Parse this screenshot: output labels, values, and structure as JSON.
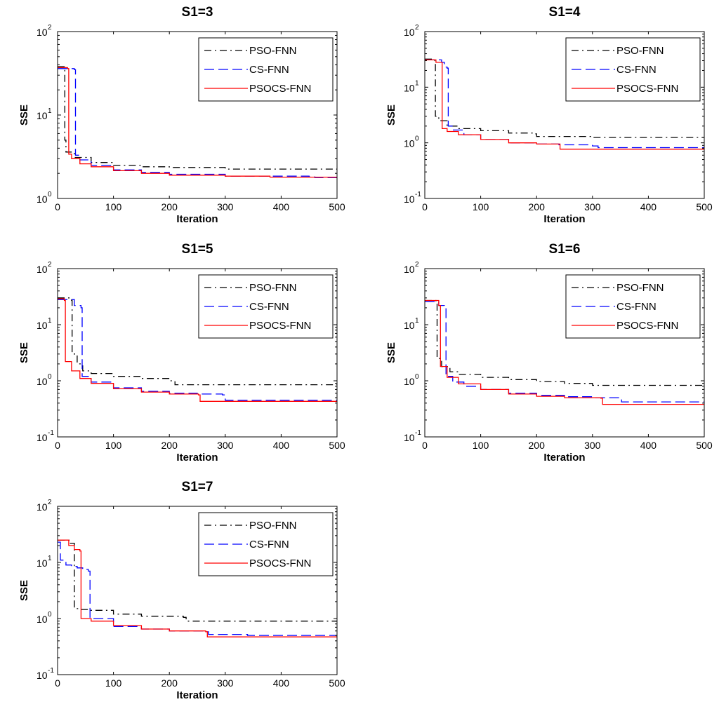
{
  "chart_data": [
    {
      "type": "line",
      "title": "S1=3",
      "xlabel": "Iteration",
      "ylabel": "SSE",
      "xlim": [
        0,
        500
      ],
      "ylim": [
        1,
        100
      ],
      "y_scale": "log",
      "xticks": [
        "0",
        "100",
        "200",
        "300",
        "400",
        "500"
      ],
      "yticks": [
        {
          "base": "10",
          "exp": "0"
        },
        {
          "base": "10",
          "exp": "1"
        },
        {
          "base": "10",
          "exp": "2"
        }
      ],
      "legend_position": "top-right",
      "grid": false,
      "series": [
        {
          "name": "PSO-FNN",
          "color": "#000000",
          "dash": "dashdot",
          "points": [
            [
              0,
              38
            ],
            [
              12,
              35
            ],
            [
              13,
              5
            ],
            [
              15,
              3.6
            ],
            [
              30,
              3.1
            ],
            [
              60,
              2.7
            ],
            [
              100,
              2.5
            ],
            [
              150,
              2.4
            ],
            [
              200,
              2.35
            ],
            [
              300,
              2.25
            ],
            [
              500,
              2.2
            ]
          ]
        },
        {
          "name": "CS-FNN",
          "color": "#0000ff",
          "dash": "dashed",
          "points": [
            [
              0,
              36
            ],
            [
              30,
              35
            ],
            [
              32,
              3.3
            ],
            [
              40,
              2.9
            ],
            [
              60,
              2.5
            ],
            [
              100,
              2.2
            ],
            [
              150,
              2.05
            ],
            [
              200,
              1.95
            ],
            [
              300,
              1.85
            ],
            [
              450,
              1.82
            ],
            [
              460,
              1.78
            ],
            [
              500,
              1.78
            ]
          ]
        },
        {
          "name": "PSOCS-FNN",
          "color": "#ff0000",
          "dash": "solid",
          "points": [
            [
              0,
              37
            ],
            [
              18,
              36
            ],
            [
              20,
              3.4
            ],
            [
              25,
              3.0
            ],
            [
              40,
              2.6
            ],
            [
              60,
              2.4
            ],
            [
              100,
              2.15
            ],
            [
              150,
              2.0
            ],
            [
              200,
              1.9
            ],
            [
              300,
              1.85
            ],
            [
              380,
              1.8
            ],
            [
              500,
              1.75
            ]
          ]
        }
      ]
    },
    {
      "type": "line",
      "title": "S1=4",
      "xlabel": "Iteration",
      "ylabel": "SSE",
      "xlim": [
        0,
        500
      ],
      "ylim": [
        0.1,
        100
      ],
      "y_scale": "log",
      "xticks": [
        "0",
        "100",
        "200",
        "300",
        "400",
        "500"
      ],
      "yticks": [
        {
          "base": "10",
          "exp": "-1"
        },
        {
          "base": "10",
          "exp": "0"
        },
        {
          "base": "10",
          "exp": "1"
        },
        {
          "base": "10",
          "exp": "2"
        }
      ],
      "legend_position": "top-right",
      "grid": false,
      "series": [
        {
          "name": "PSO-FNN",
          "color": "#000000",
          "dash": "dashdot",
          "points": [
            [
              0,
              32
            ],
            [
              18,
              30
            ],
            [
              19,
              3.0
            ],
            [
              25,
              2.5
            ],
            [
              40,
              2.0
            ],
            [
              60,
              1.8
            ],
            [
              100,
              1.65
            ],
            [
              150,
              1.5
            ],
            [
              195,
              1.45
            ],
            [
              200,
              1.3
            ],
            [
              300,
              1.25
            ],
            [
              500,
              1.25
            ]
          ]
        },
        {
          "name": "CS-FNN",
          "color": "#0000ff",
          "dash": "dashed",
          "points": [
            [
              0,
              31
            ],
            [
              30,
              28
            ],
            [
              35,
              23
            ],
            [
              40,
              22
            ],
            [
              42,
              2.0
            ],
            [
              50,
              1.7
            ],
            [
              70,
              1.4
            ],
            [
              100,
              1.15
            ],
            [
              150,
              1.0
            ],
            [
              200,
              0.95
            ],
            [
              240,
              0.92
            ],
            [
              300,
              0.88
            ],
            [
              310,
              0.82
            ],
            [
              500,
              0.8
            ]
          ]
        },
        {
          "name": "PSOCS-FNN",
          "color": "#ff0000",
          "dash": "solid",
          "points": [
            [
              0,
              31
            ],
            [
              20,
              28
            ],
            [
              30,
              28
            ],
            [
              31,
              1.8
            ],
            [
              40,
              1.6
            ],
            [
              60,
              1.4
            ],
            [
              100,
              1.15
            ],
            [
              150,
              1.0
            ],
            [
              200,
              0.95
            ],
            [
              240,
              0.95
            ],
            [
              242,
              0.77
            ],
            [
              500,
              0.77
            ]
          ]
        }
      ]
    },
    {
      "type": "line",
      "title": "S1=5",
      "xlabel": "Iteration",
      "ylabel": "SSE",
      "xlim": [
        0,
        500
      ],
      "ylim": [
        0.1,
        100
      ],
      "y_scale": "log",
      "xticks": [
        "0",
        "100",
        "200",
        "300",
        "400",
        "500"
      ],
      "yticks": [
        {
          "base": "10",
          "exp": "-1"
        },
        {
          "base": "10",
          "exp": "0"
        },
        {
          "base": "10",
          "exp": "1"
        },
        {
          "base": "10",
          "exp": "2"
        }
      ],
      "legend_position": "top-right",
      "grid": false,
      "series": [
        {
          "name": "PSO-FNN",
          "color": "#000000",
          "dash": "dashdot",
          "points": [
            [
              0,
              30
            ],
            [
              25,
              27
            ],
            [
              26,
              3.0
            ],
            [
              35,
              2.0
            ],
            [
              45,
              1.5
            ],
            [
              60,
              1.35
            ],
            [
              100,
              1.2
            ],
            [
              150,
              1.1
            ],
            [
              200,
              1.0
            ],
            [
              210,
              0.85
            ],
            [
              300,
              0.85
            ],
            [
              500,
              0.85
            ]
          ]
        },
        {
          "name": "CS-FNN",
          "color": "#0000ff",
          "dash": "dashed",
          "points": [
            [
              0,
              28
            ],
            [
              30,
              22
            ],
            [
              42,
              20
            ],
            [
              44,
              1.2
            ],
            [
              60,
              0.95
            ],
            [
              100,
              0.75
            ],
            [
              150,
              0.65
            ],
            [
              200,
              0.6
            ],
            [
              250,
              0.58
            ],
            [
              295,
              0.56
            ],
            [
              300,
              0.45
            ],
            [
              500,
              0.45
            ]
          ]
        },
        {
          "name": "PSOCS-FNN",
          "color": "#ff0000",
          "dash": "solid",
          "points": [
            [
              0,
              29
            ],
            [
              12,
              27
            ],
            [
              14,
              2.2
            ],
            [
              25,
              1.5
            ],
            [
              40,
              1.1
            ],
            [
              60,
              0.9
            ],
            [
              100,
              0.72
            ],
            [
              150,
              0.63
            ],
            [
              200,
              0.58
            ],
            [
              252,
              0.56
            ],
            [
              255,
              0.43
            ],
            [
              500,
              0.43
            ]
          ]
        }
      ]
    },
    {
      "type": "line",
      "title": "S1=6",
      "xlabel": "Iteration",
      "ylabel": "SSE",
      "xlim": [
        0,
        500
      ],
      "ylim": [
        0.1,
        100
      ],
      "y_scale": "log",
      "xticks": [
        "0",
        "100",
        "200",
        "300",
        "400",
        "500"
      ],
      "yticks": [
        {
          "base": "10",
          "exp": "-1"
        },
        {
          "base": "10",
          "exp": "0"
        },
        {
          "base": "10",
          "exp": "1"
        },
        {
          "base": "10",
          "exp": "2"
        }
      ],
      "legend_position": "top-right",
      "grid": false,
      "series": [
        {
          "name": "PSO-FNN",
          "color": "#000000",
          "dash": "dashdot",
          "points": [
            [
              0,
              27
            ],
            [
              20,
              24
            ],
            [
              22,
              2.5
            ],
            [
              30,
              1.8
            ],
            [
              45,
              1.45
            ],
            [
              60,
              1.3
            ],
            [
              100,
              1.15
            ],
            [
              150,
              1.05
            ],
            [
              200,
              0.97
            ],
            [
              250,
              0.9
            ],
            [
              300,
              0.83
            ],
            [
              500,
              0.8
            ]
          ]
        },
        {
          "name": "CS-FNN",
          "color": "#0000ff",
          "dash": "dashed",
          "points": [
            [
              0,
              26
            ],
            [
              25,
              22
            ],
            [
              35,
              21
            ],
            [
              38,
              1.2
            ],
            [
              50,
              0.95
            ],
            [
              70,
              0.8
            ],
            [
              100,
              0.7
            ],
            [
              150,
              0.6
            ],
            [
              200,
              0.55
            ],
            [
              250,
              0.52
            ],
            [
              300,
              0.5
            ],
            [
              350,
              0.5
            ],
            [
              352,
              0.42
            ],
            [
              500,
              0.42
            ]
          ]
        },
        {
          "name": "PSOCS-FNN",
          "color": "#ff0000",
          "dash": "solid",
          "points": [
            [
              0,
              27
            ],
            [
              25,
              22
            ],
            [
              28,
              1.8
            ],
            [
              40,
              1.15
            ],
            [
              60,
              0.88
            ],
            [
              100,
              0.7
            ],
            [
              150,
              0.58
            ],
            [
              200,
              0.53
            ],
            [
              250,
              0.5
            ],
            [
              315,
              0.49
            ],
            [
              318,
              0.38
            ],
            [
              500,
              0.38
            ]
          ]
        }
      ]
    },
    {
      "type": "line",
      "title": "S1=7",
      "xlabel": "Iteration",
      "ylabel": "SSE",
      "xlim": [
        0,
        500
      ],
      "ylim": [
        0.1,
        100
      ],
      "y_scale": "log",
      "xticks": [
        "0",
        "100",
        "200",
        "300",
        "400",
        "500"
      ],
      "yticks": [
        {
          "base": "10",
          "exp": "-1"
        },
        {
          "base": "10",
          "exp": "0"
        },
        {
          "base": "10",
          "exp": "1"
        },
        {
          "base": "10",
          "exp": "2"
        }
      ],
      "legend_position": "top-right",
      "grid": false,
      "series": [
        {
          "name": "PSO-FNN",
          "color": "#000000",
          "dash": "dashdot",
          "points": [
            [
              0,
              25
            ],
            [
              22,
              22
            ],
            [
              30,
              1.5
            ],
            [
              40,
              1.45
            ],
            [
              55,
              1.4
            ],
            [
              100,
              1.2
            ],
            [
              150,
              1.1
            ],
            [
              225,
              1.05
            ],
            [
              230,
              0.9
            ],
            [
              300,
              0.9
            ],
            [
              500,
              0.9
            ]
          ]
        },
        {
          "name": "CS-FNN",
          "color": "#0000ff",
          "dash": "dashed",
          "points": [
            [
              0,
              23
            ],
            [
              5,
              11
            ],
            [
              15,
              9
            ],
            [
              25,
              8.5
            ],
            [
              35,
              8.0
            ],
            [
              45,
              7.5
            ],
            [
              55,
              7.0
            ],
            [
              58,
              1.0
            ],
            [
              100,
              0.72
            ],
            [
              150,
              0.65
            ],
            [
              200,
              0.6
            ],
            [
              260,
              0.58
            ],
            [
              270,
              0.52
            ],
            [
              340,
              0.5
            ],
            [
              500,
              0.48
            ]
          ]
        },
        {
          "name": "PSOCS-FNN",
          "color": "#ff0000",
          "dash": "solid",
          "points": [
            [
              0,
              25
            ],
            [
              20,
              20
            ],
            [
              30,
              17
            ],
            [
              40,
              16
            ],
            [
              42,
              1.0
            ],
            [
              60,
              0.9
            ],
            [
              100,
              0.75
            ],
            [
              150,
              0.65
            ],
            [
              200,
              0.6
            ],
            [
              265,
              0.58
            ],
            [
              268,
              0.47
            ],
            [
              500,
              0.47
            ]
          ]
        }
      ]
    }
  ]
}
